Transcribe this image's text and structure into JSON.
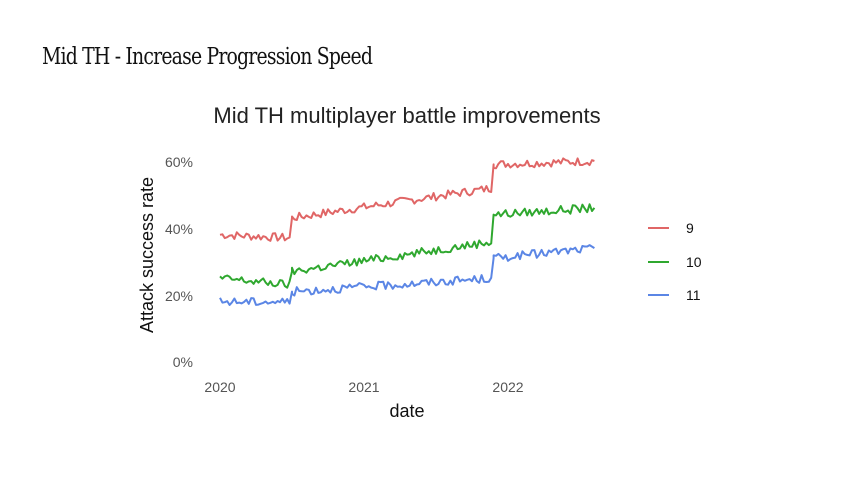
{
  "slide": {
    "title": "Mid TH - Increase Progression Speed"
  },
  "chart_data": {
    "type": "line",
    "title": "Mid TH multiplayer battle improvements",
    "xlabel": "date",
    "ylabel": "Attack success rate",
    "x_ticks": [
      "2020",
      "2021",
      "2022"
    ],
    "y_ticks": [
      "0%",
      "20%",
      "40%",
      "60%"
    ],
    "ylim": [
      0,
      0.62
    ],
    "xlim": [
      2019.92,
      2022.67
    ],
    "grid": false,
    "legend_position": "right",
    "x": [
      2020.0,
      2020.5,
      2020.5,
      2021.9,
      2021.9,
      2022.6
    ],
    "series": [
      {
        "name": "9",
        "color": "#E06666",
        "values": [
          0.38,
          0.37,
          0.43,
          0.52,
          0.59,
          0.6
        ]
      },
      {
        "name": "10",
        "color": "#2FA82F",
        "values": [
          0.25,
          0.23,
          0.27,
          0.36,
          0.44,
          0.46
        ]
      },
      {
        "name": "11",
        "color": "#5B86E5",
        "values": [
          0.18,
          0.18,
          0.21,
          0.25,
          0.31,
          0.34
        ]
      }
    ]
  }
}
